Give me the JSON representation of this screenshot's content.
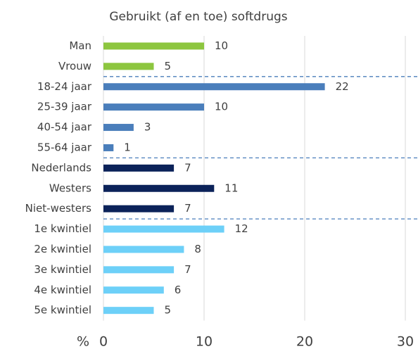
{
  "chart_data": {
    "type": "bar",
    "orientation": "horizontal",
    "title": "Gebruikt (af en toe) softdrugs",
    "categories": [
      "Man",
      "Vrouw",
      "18-24 jaar",
      "25-39 jaar",
      "40-54 jaar",
      "55-64 jaar",
      "Nederlands",
      "Westers",
      "Niet-westers",
      "1e kwintiel",
      "2e kwintiel",
      "3e kwintiel",
      "4e kwintiel",
      "5e kwintiel"
    ],
    "values": [
      10,
      5,
      22,
      10,
      3,
      1,
      7,
      11,
      7,
      12,
      8,
      7,
      6,
      5
    ],
    "colors": [
      "#8dc63f",
      "#8dc63f",
      "#4a7ebb",
      "#4a7ebb",
      "#4a7ebb",
      "#4a7ebb",
      "#0b2259",
      "#0b2259",
      "#0b2259",
      "#6dd0f8",
      "#6dd0f8",
      "#6dd0f8",
      "#6dd0f8",
      "#6dd0f8"
    ],
    "xlabel": "%",
    "xlim": [
      0,
      30
    ],
    "xticks": [
      0,
      10,
      20,
      30
    ],
    "grid": true
  }
}
